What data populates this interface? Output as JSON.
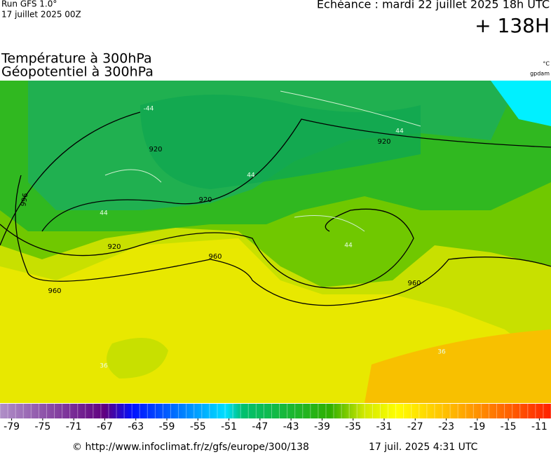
{
  "header": {
    "run": "Run GFS 1.0°",
    "run_date": "17 juillet 2025 00Z",
    "valid": "Echéance : mardi 22 juillet 2025 18h UTC",
    "lead": "+ 138H",
    "field1": "Température à 300hPa",
    "field2": "Géopotentiel à 300hPa",
    "unit1": "°C",
    "unit2": "gpdam"
  },
  "contours": [
    "920",
    "920",
    "920",
    "920",
    "960",
    "960",
    "960",
    "996",
    "-44",
    "44",
    "44",
    "44",
    "44",
    "36",
    "36"
  ],
  "colorbar": {
    "lim": [
      -80,
      -9
    ],
    "ticks": [
      -79,
      -75,
      -71,
      -67,
      -63,
      -59,
      -55,
      -51,
      -47,
      -43,
      -39,
      -35,
      -31,
      -27,
      -23,
      -19,
      -15,
      -11
    ]
  },
  "footer": {
    "url": "© http://www.infoclimat.fr/z/gfs/europe/300/138",
    "generated": "17 juil. 2025  4:31 UTC"
  }
}
